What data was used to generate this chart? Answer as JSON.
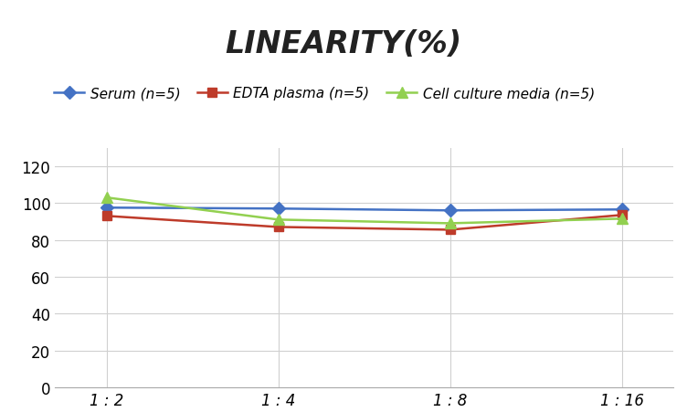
{
  "title": "LINEARITY(%)",
  "x_labels": [
    "1 : 2",
    "1 : 4",
    "1 : 8",
    "1 : 16"
  ],
  "x_positions": [
    0,
    1,
    2,
    3
  ],
  "series": [
    {
      "label": "Serum (n=5)",
      "values": [
        97.5,
        97.0,
        96.0,
        96.5
      ],
      "color": "#4472C4",
      "marker": "D",
      "marker_size": 7,
      "linewidth": 1.8
    },
    {
      "label": "EDTA plasma (n=5)",
      "values": [
        93.0,
        87.0,
        85.5,
        93.5
      ],
      "color": "#BE3B2A",
      "marker": "s",
      "marker_size": 7,
      "linewidth": 1.8
    },
    {
      "label": "Cell culture media (n=5)",
      "values": [
        103.0,
        91.0,
        89.0,
        91.5
      ],
      "color": "#92D050",
      "marker": "^",
      "marker_size": 8,
      "linewidth": 1.8
    }
  ],
  "ylim": [
    0,
    130
  ],
  "yticks": [
    0,
    20,
    40,
    60,
    80,
    100,
    120
  ],
  "grid_color": "#D0D0D0",
  "background_color": "#FFFFFF",
  "title_fontsize": 24,
  "legend_fontsize": 11,
  "tick_fontsize": 12
}
